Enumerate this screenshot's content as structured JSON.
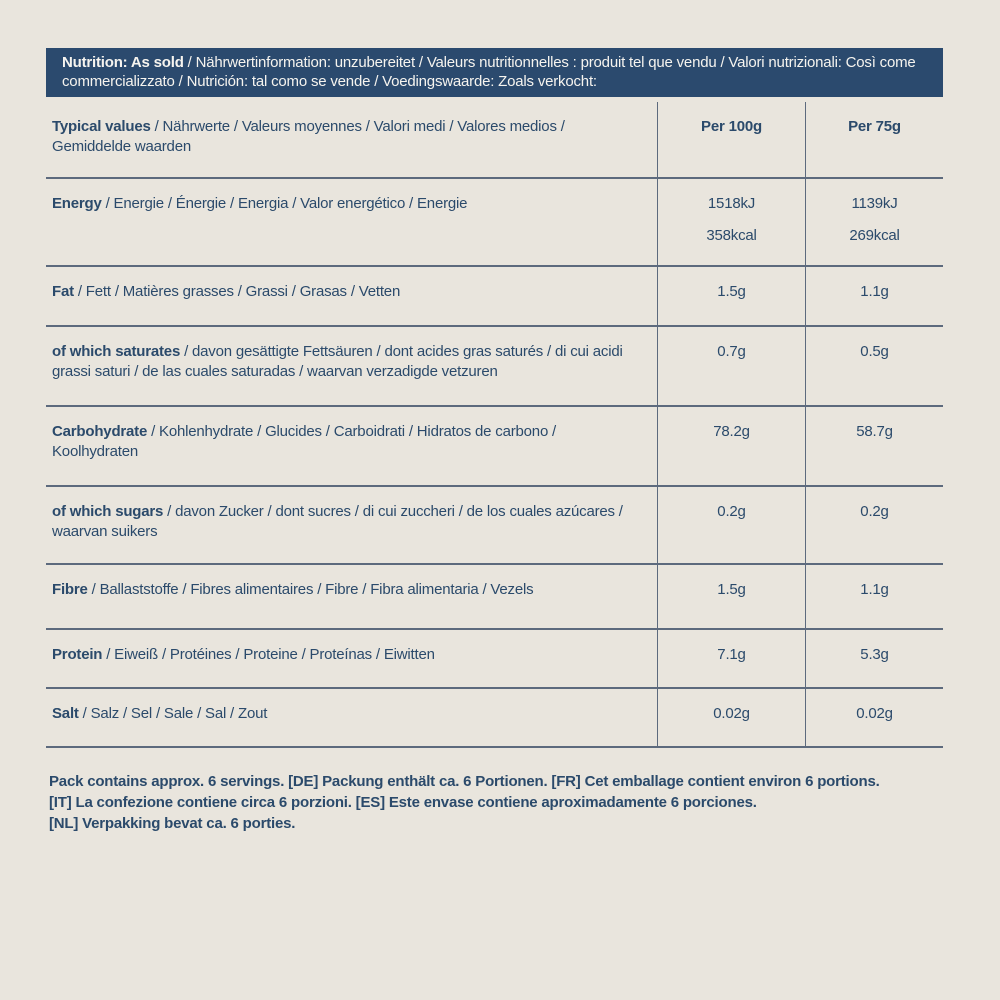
{
  "banner": {
    "bold": "Nutrition: As sold",
    "rest": " / Nährwertinformation: unzubereitet / Valeurs nutritionnelles : produit tel que vendu / Valori nutrizionali: Così come commercializzato / Nutrición: tal como se vende / Voedingswaarde: Zoals verkocht:"
  },
  "table": {
    "header_row": {
      "bold": "Typical values",
      "rest": " / Nährwerte / Valeurs moyennes / Valori medi / Valores medios / Gemiddelde waarden"
    },
    "columns": [
      "Per 100g",
      "Per 75g"
    ],
    "rows": [
      {
        "bold": "Energy",
        "rest": " / Energie / Énergie / Energia / Valor energético / Energie",
        "per100": [
          "1518kJ",
          "358kcal"
        ],
        "per75": [
          "1139kJ",
          "269kcal"
        ]
      },
      {
        "bold": "Fat",
        "rest": " / Fett / Matières grasses / Grassi / Grasas / Vetten",
        "per100": [
          "1.5g"
        ],
        "per75": [
          "1.1g"
        ]
      },
      {
        "bold": "of which saturates",
        "rest": " / davon gesättigte Fettsäuren / dont acides gras saturés / di cui acidi grassi saturi / de las cuales saturadas / waarvan verzadigde vetzuren",
        "per100": [
          "0.7g"
        ],
        "per75": [
          "0.5g"
        ]
      },
      {
        "bold": "Carbohydrate",
        "rest": " / Kohlenhydrate / Glucides / Carboidrati / Hidratos de carbono / Koolhydraten",
        "per100": [
          "78.2g"
        ],
        "per75": [
          "58.7g"
        ]
      },
      {
        "bold": "of which sugars",
        "rest": " / davon Zucker / dont sucres / di cui zuccheri / de los cuales azúcares / waarvan suikers",
        "per100": [
          "0.2g"
        ],
        "per75": [
          "0.2g"
        ]
      },
      {
        "bold": "Fibre",
        "rest": " / Ballaststoffe / Fibres alimentaires / Fibre / Fibra alimentaria / Vezels",
        "per100": [
          "1.5g"
        ],
        "per75": [
          "1.1g"
        ]
      },
      {
        "bold": "Protein",
        "rest": " / Eiweiß / Protéines / Proteine / Proteínas / Eiwitten",
        "per100": [
          "7.1g"
        ],
        "per75": [
          "5.3g"
        ]
      },
      {
        "bold": "Salt",
        "rest": " / Salz / Sel / Sale / Sal / Zout",
        "per100": [
          "0.02g"
        ],
        "per75": [
          "0.02g"
        ]
      }
    ]
  },
  "footer": {
    "lines": [
      "Pack contains approx. 6 servings. [DE] Packung enthält ca. 6 Portionen. [FR] Cet emballage contient environ 6 portions.",
      "[IT] La confezione contiene circa 6 porzioni. [ES] Este envase contiene aproximadamente 6 porciones.",
      "[NL] Verpakking bevat ca. 6 porties."
    ]
  },
  "colors": {
    "background": "#e9e5dd",
    "banner_background": "#2b4a6e",
    "banner_text": "#f6f4ef",
    "body_text": "#2b4a6b",
    "rule_line": "#5d6a7d"
  }
}
